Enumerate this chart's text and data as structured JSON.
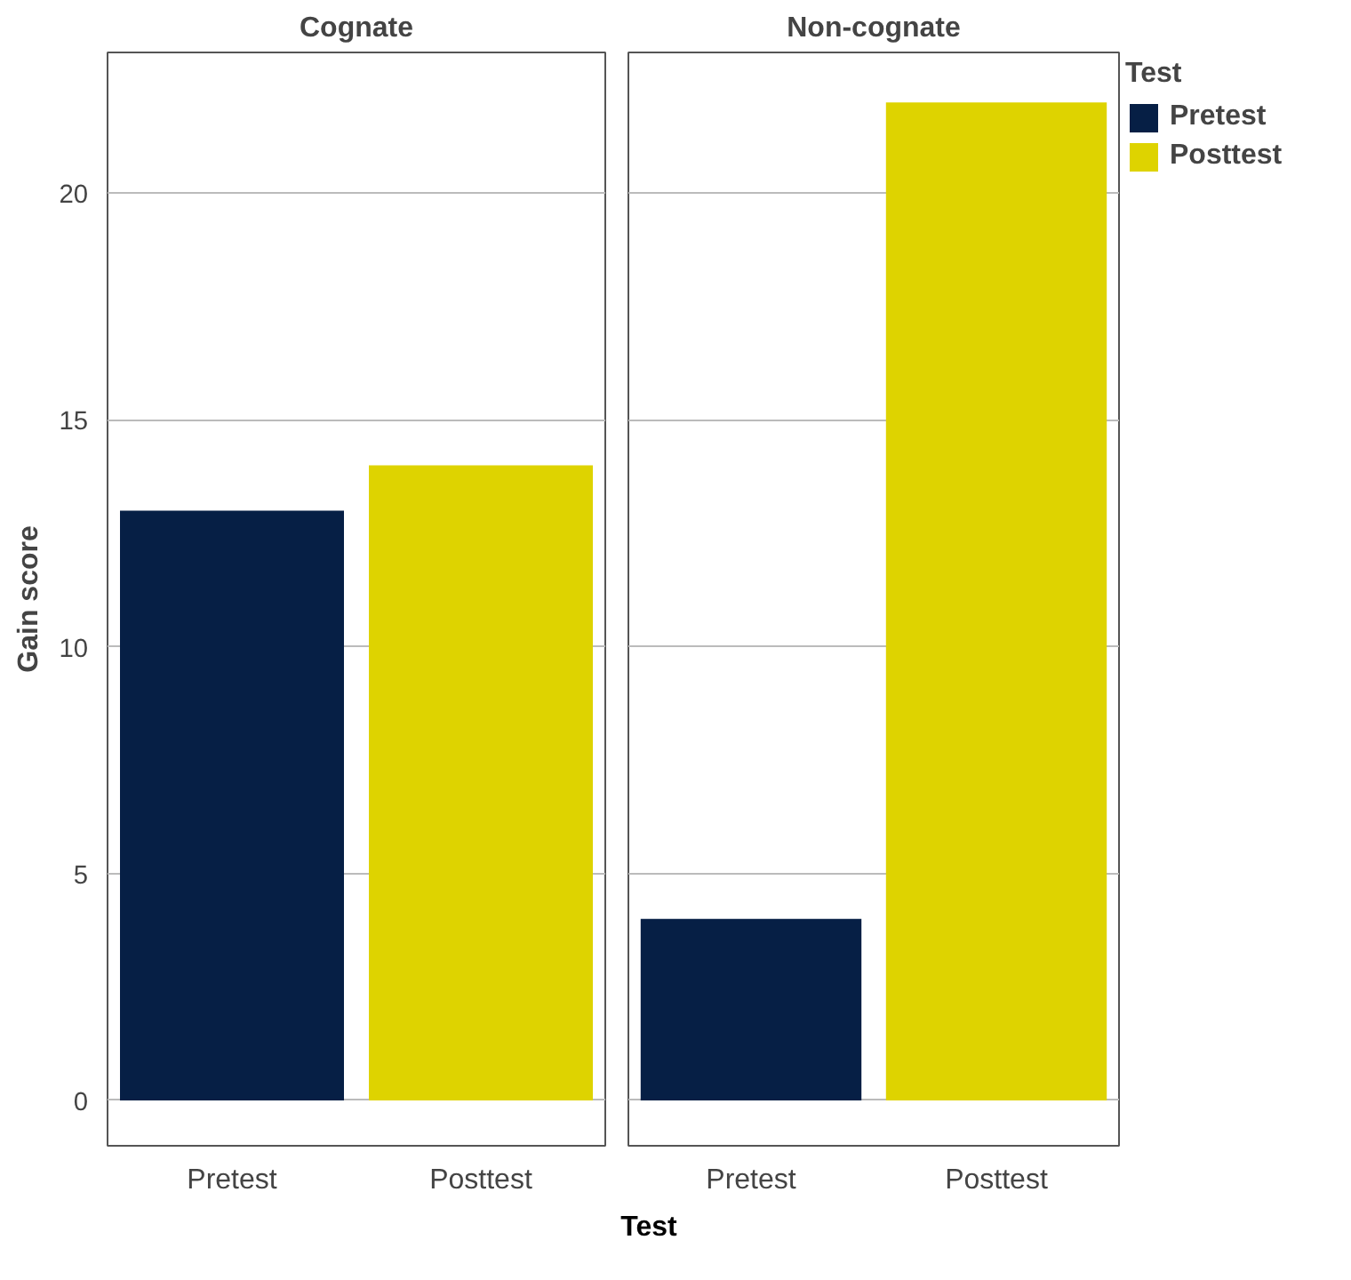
{
  "chart_data": [
    {
      "type": "bar",
      "title": "Cognate",
      "ylabel": "Gain score",
      "xlabel": "Test",
      "categories": [
        "Pretest",
        "Posttest"
      ],
      "values": [
        13,
        14
      ],
      "colors": [
        "#061f45",
        "#ded300"
      ],
      "ylim": [
        -1,
        23.1
      ],
      "yticks": [
        0,
        5,
        10,
        15,
        20
      ],
      "grid": "y"
    },
    {
      "type": "bar",
      "title": "Non-cognate",
      "legend_title": "Test",
      "categories": [
        "Pretest",
        "Posttest"
      ],
      "series": [
        {
          "name": "Pretest",
          "color": "#061f45",
          "values": [
            4,
            null
          ]
        },
        {
          "name": "Posttest",
          "color": "#ded300",
          "values": [
            null,
            22
          ]
        }
      ],
      "ylim": [
        -1,
        23.1
      ],
      "yticks": [
        0,
        5,
        10,
        15,
        20
      ],
      "grid": "y",
      "legend": "right",
      "tick_labels": "x"
    }
  ]
}
